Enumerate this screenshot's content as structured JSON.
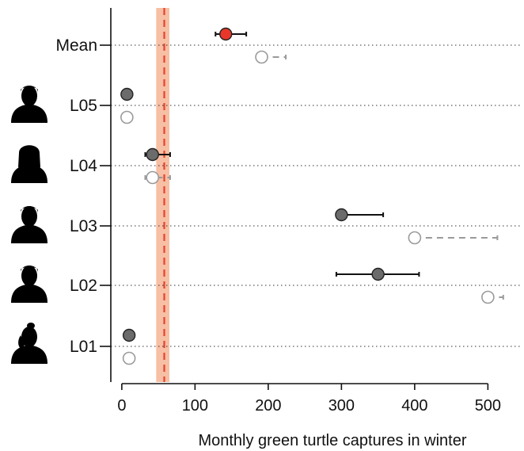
{
  "chart_data": {
    "type": "scatter",
    "title": "",
    "xlabel": "Monthly green turtle captures in winter",
    "ylabel": "",
    "xlim": [
      -15,
      545
    ],
    "xticks": [
      0,
      100,
      200,
      300,
      400,
      500
    ],
    "categories": [
      "Mean",
      "L05",
      "L04",
      "L03",
      "L02",
      "L01"
    ],
    "category_icons": [
      "",
      "person-short-hair-icon",
      "person-long-hair-icon",
      "person-short-hair-icon",
      "person-short-hair-icon",
      "person-ponytail-icon"
    ],
    "grid": "dotted horizontal lines at each category",
    "reference_line": {
      "x": 58,
      "band": [
        47,
        65
      ],
      "line_color": "#e8432f",
      "band_color": "#f6b89a",
      "style": "dashed"
    },
    "series": [
      {
        "marker": "filled",
        "points": [
          {
            "category": "Mean",
            "x": 142,
            "lower": 128,
            "upper": 170,
            "color": "#e8372a"
          },
          {
            "category": "L05",
            "x": 7,
            "lower": null,
            "upper": null,
            "color": "#6b6b6b"
          },
          {
            "category": "L04",
            "x": 42,
            "lower": 32,
            "upper": 66,
            "color": "#6b6b6b"
          },
          {
            "category": "L03",
            "x": 300,
            "lower": 300,
            "upper": 357,
            "color": "#6b6b6b"
          },
          {
            "category": "L02",
            "x": 350,
            "lower": 293,
            "upper": 406,
            "color": "#6b6b6b"
          },
          {
            "category": "L01",
            "x": 10,
            "lower": null,
            "upper": null,
            "color": "#6b6b6b"
          }
        ]
      },
      {
        "marker": "open",
        "points": [
          {
            "category": "Mean",
            "x": 191,
            "lower": 191,
            "upper": 224,
            "color": "#9a9a9a"
          },
          {
            "category": "L05",
            "x": 7,
            "lower": null,
            "upper": null,
            "color": "#9a9a9a"
          },
          {
            "category": "L04",
            "x": 42,
            "lower": 32,
            "upper": 66,
            "color": "#9a9a9a"
          },
          {
            "category": "L03",
            "x": 400,
            "lower": 400,
            "upper": 513,
            "color": "#9a9a9a"
          },
          {
            "category": "L02",
            "x": 500,
            "lower": 500,
            "upper": 521,
            "color": "#9a9a9a"
          },
          {
            "category": "L01",
            "x": 10,
            "lower": null,
            "upper": null,
            "color": "#9a9a9a"
          }
        ]
      }
    ]
  }
}
